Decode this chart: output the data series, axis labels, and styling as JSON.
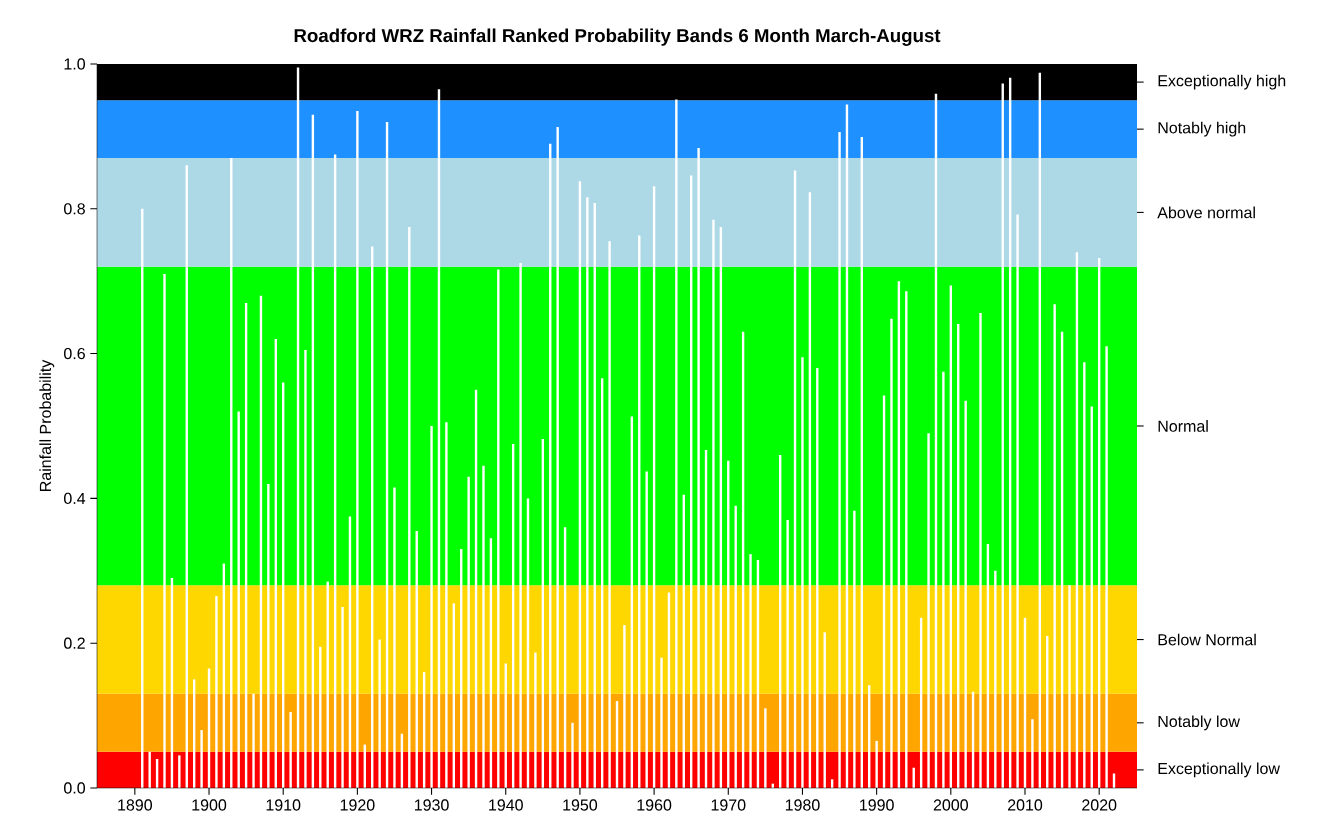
{
  "chart_data": {
    "type": "bar",
    "title": "Roadford WRZ Rainfall Ranked Probability Bands 6 Month March-August",
    "ylabel": "Rainfall Probability",
    "color": "#ffffff",
    "x": [
      1891,
      1892,
      1893,
      1894,
      1895,
      1896,
      1897,
      1898,
      1899,
      1900,
      1901,
      1902,
      1903,
      1904,
      1905,
      1906,
      1907,
      1908,
      1909,
      1910,
      1911,
      1912,
      1913,
      1914,
      1915,
      1916,
      1917,
      1918,
      1919,
      1920,
      1921,
      1922,
      1923,
      1924,
      1925,
      1926,
      1927,
      1928,
      1929,
      1930,
      1931,
      1932,
      1933,
      1934,
      1935,
      1936,
      1937,
      1938,
      1939,
      1940,
      1941,
      1942,
      1943,
      1944,
      1945,
      1946,
      1947,
      1948,
      1949,
      1950,
      1951,
      1952,
      1953,
      1954,
      1955,
      1956,
      1957,
      1958,
      1959,
      1960,
      1961,
      1962,
      1963,
      1964,
      1965,
      1966,
      1967,
      1968,
      1969,
      1970,
      1971,
      1972,
      1973,
      1974,
      1975,
      1976,
      1977,
      1978,
      1979,
      1980,
      1981,
      1982,
      1983,
      1984,
      1985,
      1986,
      1987,
      1988,
      1989,
      1990,
      1991,
      1992,
      1993,
      1994,
      1995,
      1996,
      1997,
      1998,
      1999,
      2000,
      2001,
      2002,
      2003,
      2004,
      2005,
      2006,
      2007,
      2008,
      2009,
      2010,
      2011,
      2012,
      2013,
      2014,
      2015,
      2016,
      2017,
      2018,
      2019,
      2020,
      2021,
      2022
    ],
    "values": [
      0.8,
      0.05,
      0.04,
      0.71,
      0.29,
      0.045,
      0.86,
      0.15,
      0.08,
      0.165,
      0.265,
      0.31,
      0.87,
      0.52,
      0.67,
      0.13,
      0.68,
      0.42,
      0.62,
      0.56,
      0.105,
      0.995,
      0.605,
      0.93,
      0.195,
      0.285,
      0.875,
      0.25,
      0.375,
      0.935,
      0.06,
      0.748,
      0.205,
      0.92,
      0.415,
      0.075,
      0.775,
      0.355,
      0.16,
      0.5,
      0.965,
      0.505,
      0.255,
      0.33,
      0.43,
      0.55,
      0.445,
      0.345,
      0.716,
      0.172,
      0.475,
      0.725,
      0.4,
      0.187,
      0.482,
      0.89,
      0.913,
      0.36,
      0.09,
      0.838,
      0.816,
      0.808,
      0.566,
      0.755,
      0.12,
      0.225,
      0.513,
      0.763,
      0.437,
      0.831,
      0.18,
      0.27,
      0.951,
      0.405,
      0.846,
      0.884,
      0.467,
      0.785,
      0.775,
      0.452,
      0.39,
      0.63,
      0.323,
      0.315,
      0.11,
      0.006,
      0.46,
      0.37,
      0.853,
      0.595,
      0.823,
      0.58,
      0.215,
      0.012,
      0.906,
      0.944,
      0.383,
      0.899,
      0.142,
      0.065,
      0.542,
      0.648,
      0.7,
      0.686,
      0.028,
      0.235,
      0.49,
      0.959,
      0.575,
      0.694,
      0.641,
      0.535,
      0.133,
      0.656,
      0.337,
      0.3,
      0.973,
      0.981,
      0.792,
      0.235,
      0.095,
      0.988,
      0.21,
      0.668,
      0.63,
      0.28,
      0.74,
      0.588,
      0.527,
      0.732,
      0.61,
      0.02
    ],
    "xlim": [
      1884.9,
      2025.1
    ],
    "ylim": [
      0,
      1
    ],
    "xticks": [
      1890,
      1900,
      1910,
      1920,
      1930,
      1940,
      1950,
      1960,
      1970,
      1980,
      1990,
      2000,
      2010,
      2020
    ],
    "yticks": [
      {
        "value": 0,
        "label": "0.0"
      },
      0.2,
      0.4,
      0.6,
      0.8,
      {
        "value": 1,
        "label": "1.0"
      }
    ],
    "bands": [
      {
        "axis": "y",
        "from": 0,
        "to": 0.05,
        "label": "Exceptionally low",
        "color": "#ff0000"
      },
      {
        "axis": "y",
        "from": 0.05,
        "to": 0.13,
        "label": "Notably low",
        "color": "#ffa500"
      },
      {
        "axis": "y",
        "from": 0.13,
        "to": 0.28,
        "label": "Below Normal",
        "color": "#ffd700"
      },
      {
        "axis": "y",
        "from": 0.28,
        "to": 0.72,
        "label": "Normal",
        "color": "#00ff00"
      },
      {
        "axis": "y",
        "from": 0.72,
        "to": 0.87,
        "label": "Above normal",
        "color": "#add8e6"
      },
      {
        "axis": "y",
        "from": 0.87,
        "to": 0.95,
        "label": "Notably high",
        "color": "#1e90ff"
      },
      {
        "axis": "y",
        "from": 0.95,
        "to": 1,
        "label": "Exceptionally high",
        "color": "#000000"
      }
    ]
  }
}
